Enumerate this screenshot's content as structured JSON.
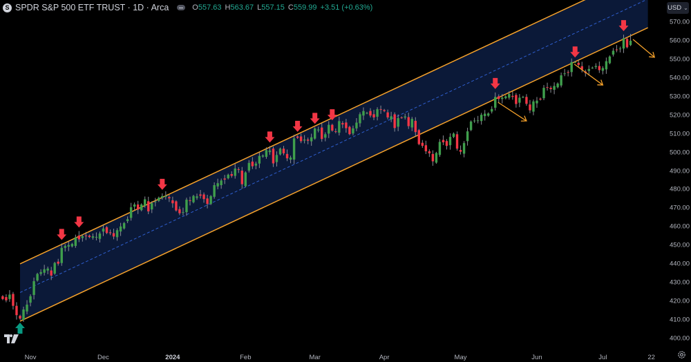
{
  "header": {
    "logo_letter": "S",
    "title": "SPDR S&P 500 ETF TRUST · 1D · Arca",
    "ohlc": [
      {
        "key": "O",
        "value": "557.63"
      },
      {
        "key": "H",
        "value": "563.67"
      },
      {
        "key": "L",
        "value": "557.15"
      },
      {
        "key": "C",
        "value": "559.99"
      }
    ],
    "change": "+3.51 (+0.63%)"
  },
  "currency_button": {
    "label": "USD",
    "icon": "chevron-down-icon"
  },
  "colors": {
    "up": "#3f9f4c",
    "down": "#f23645",
    "wick": "#8a8d96",
    "channel_line": "#f5a12a",
    "channel_fill": "#0b1938",
    "channel_mid": "#2f5fd0",
    "marker_down": "#f23645",
    "marker_up": "#089981",
    "projection_arrow": "#f5a12a"
  },
  "chart_data": {
    "type": "candlestick",
    "title": "SPDR S&P 500 ETF TRUST · 1D · Arca",
    "ylabel": "USD",
    "ylim": [
      395,
      575
    ],
    "y_ticks": [
      "570.00",
      "560.00",
      "550.00",
      "540.00",
      "530.00",
      "520.00",
      "510.00",
      "500.00",
      "490.00",
      "480.00",
      "470.00",
      "460.00",
      "450.00",
      "440.00",
      "430.00",
      "420.00",
      "410.00",
      "400.00"
    ],
    "x_ticks": [
      {
        "label": "Nov",
        "bar": 8
      },
      {
        "label": "Dec",
        "bar": 29
      },
      {
        "label": "2024",
        "bar": 49,
        "bold": true
      },
      {
        "label": "Feb",
        "bar": 70
      },
      {
        "label": "Mar",
        "bar": 90
      },
      {
        "label": "Apr",
        "bar": 110
      },
      {
        "label": "May",
        "bar": 132
      },
      {
        "label": "Jun",
        "bar": 154
      },
      {
        "label": "Jul",
        "bar": 173
      },
      {
        "label": "22",
        "bar": 187
      }
    ],
    "first_bar_date": "2023-10-20",
    "closes": [
      421.2,
      420.5,
      423.6,
      417.55,
      412.55,
      410.7,
      415.6,
      418.2,
      422.7,
      430.8,
      434.7,
      435.7,
      437.2,
      437.6,
      433.8,
      440.6,
      440.2,
      448.7,
      449.7,
      450.2,
      450.8,
      454.3,
      453.3,
      455.0,
      455.3,
      454.5,
      454.9,
      454.6,
      456.4,
      459.1,
      456.7,
      456.6,
      454.8,
      458.2,
      460.2,
      462.0,
      464.1,
      470.5,
      472.0,
      469.3,
      472.0,
      474.8,
      468.3,
      472.7,
      473.6,
      475.65,
      476.5,
      476.7,
      475.3,
      472.65,
      468.8,
      467.3,
      467.9,
      474.6,
      473.9,
      476.6,
      476.35,
      476.7,
      474.9,
      472.3,
      476.5,
      482.4,
      483.45,
      484.9,
      485.4,
      488.0,
      487.4,
      491.3,
      490.9,
      482.9,
      489.2,
      494.35,
      492.55,
      494.0,
      498.1,
      498.3,
      501.2,
      501.0,
      494.1,
      498.6,
      502.0,
      499.5,
      496.8,
      497.2,
      507.5,
      507.85,
      506.0,
      506.9,
      506.3,
      508.1,
      512.85,
      512.3,
      507.2,
      509.75,
      514.8,
      511.7,
      511.3,
      516.8,
      515.0,
      513.0,
      509.8,
      512.9,
      516.0,
      520.5,
      522.2,
      521.2,
      519.8,
      518.8,
      523.2,
      523.1,
      522.2,
      518.8,
      519.4,
      513.1,
      518.4,
      518.7,
      519.3,
      514.1,
      518.0,
      510.9,
      504.45,
      503.5,
      500.6,
      499.5,
      495.2,
      499.7,
      505.65,
      505.4,
      503.5,
      508.3,
      510.1,
      502.0,
      500.35,
      505.0,
      511.3,
      516.6,
      517.1,
      517.2,
      520.2,
      520.8,
      520.9,
      523.3,
      529.8,
      528.7,
      529.45,
      530.1,
      531.4,
      529.8,
      526.0,
      529.4,
      529.8,
      526.1,
      522.6,
      527.4,
      527.8,
      528.4,
      534.7,
      534.7,
      534.0,
      535.7,
      537.0,
      541.4,
      542.45,
      542.8,
      548.5,
      548.5,
      547.0,
      544.5,
      542.7,
      544.8,
      545.5,
      546.4,
      544.2,
      545.3,
      549.0,
      551.5,
      554.6,
      555.3,
      555.8,
      561.3,
      556.5,
      559.99
    ],
    "last_bar": {
      "open": 557.63,
      "high": 563.67,
      "low": 557.15,
      "close": 559.99
    },
    "channel": {
      "start_bar": 5,
      "end_bar": 186,
      "lower": [
        409.3,
        567.0
      ],
      "upper": [
        440.1,
        597.8
      ],
      "mid_dashed": true
    },
    "sell_markers_bars": [
      17,
      22,
      46,
      77,
      85,
      90,
      95,
      142,
      165,
      179
    ],
    "buy_markers_bars": [
      5
    ],
    "projection_arrows": [
      {
        "from": [
          142.8,
          526.9
        ],
        "to": [
          151.0,
          516.9
        ]
      },
      {
        "from": [
          164.8,
          547.4
        ],
        "to": [
          173.0,
          536.2
        ]
      },
      {
        "from": [
          181.7,
          560.7
        ],
        "to": [
          187.9,
          551.1
        ]
      }
    ]
  }
}
